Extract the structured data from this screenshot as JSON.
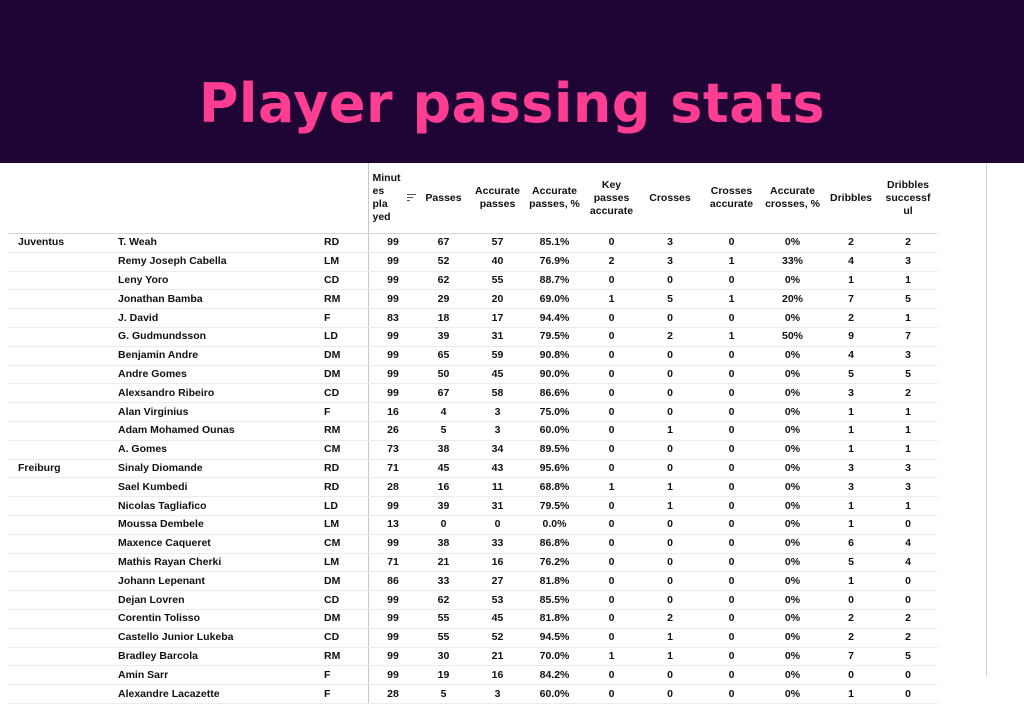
{
  "title": "Player passing stats",
  "chart_data": {
    "type": "table",
    "columns": [
      "",
      "",
      "",
      "Minut es pla yed",
      "Passes",
      "Accurate passes",
      "Accurate passes, %",
      "Key passes accurate",
      "Crosses",
      "Crosses accurate",
      "Accurate crosses, %",
      "Dribbles",
      "Dribbles successf ul"
    ],
    "rows": [
      [
        "Juventus",
        "T. Weah",
        "RD",
        "99",
        "67",
        "57",
        "85.1%",
        "0",
        "3",
        "0",
        "0%",
        "2",
        "2"
      ],
      [
        "",
        "Remy Joseph Cabella",
        "LM",
        "99",
        "52",
        "40",
        "76.9%",
        "2",
        "3",
        "1",
        "33%",
        "4",
        "3"
      ],
      [
        "",
        "Leny Yoro",
        "CD",
        "99",
        "62",
        "55",
        "88.7%",
        "0",
        "0",
        "0",
        "0%",
        "1",
        "1"
      ],
      [
        "",
        "Jonathan Bamba",
        "RM",
        "99",
        "29",
        "20",
        "69.0%",
        "1",
        "5",
        "1",
        "20%",
        "7",
        "5"
      ],
      [
        "",
        "J. David",
        "F",
        "83",
        "18",
        "17",
        "94.4%",
        "0",
        "0",
        "0",
        "0%",
        "2",
        "1"
      ],
      [
        "",
        "G. Gudmundsson",
        "LD",
        "99",
        "39",
        "31",
        "79.5%",
        "0",
        "2",
        "1",
        "50%",
        "9",
        "7"
      ],
      [
        "",
        "Benjamin Andre",
        "DM",
        "99",
        "65",
        "59",
        "90.8%",
        "0",
        "0",
        "0",
        "0%",
        "4",
        "3"
      ],
      [
        "",
        "Andre Gomes",
        "DM",
        "99",
        "50",
        "45",
        "90.0%",
        "0",
        "0",
        "0",
        "0%",
        "5",
        "5"
      ],
      [
        "",
        "Alexsandro Ribeiro",
        "CD",
        "99",
        "67",
        "58",
        "86.6%",
        "0",
        "0",
        "0",
        "0%",
        "3",
        "2"
      ],
      [
        "",
        "Alan Virginius",
        "F",
        "16",
        "4",
        "3",
        "75.0%",
        "0",
        "0",
        "0",
        "0%",
        "1",
        "1"
      ],
      [
        "",
        "Adam Mohamed Ounas",
        "RM",
        "26",
        "5",
        "3",
        "60.0%",
        "0",
        "1",
        "0",
        "0%",
        "1",
        "1"
      ],
      [
        "",
        "A. Gomes",
        "CM",
        "73",
        "38",
        "34",
        "89.5%",
        "0",
        "0",
        "0",
        "0%",
        "1",
        "1"
      ],
      [
        "Freiburg",
        "Sinaly Diomande",
        "RD",
        "71",
        "45",
        "43",
        "95.6%",
        "0",
        "0",
        "0",
        "0%",
        "3",
        "3"
      ],
      [
        "",
        "Sael Kumbedi",
        "RD",
        "28",
        "16",
        "11",
        "68.8%",
        "1",
        "1",
        "0",
        "0%",
        "3",
        "3"
      ],
      [
        "",
        "Nicolas Tagliafico",
        "LD",
        "99",
        "39",
        "31",
        "79.5%",
        "0",
        "1",
        "0",
        "0%",
        "1",
        "1"
      ],
      [
        "",
        "Moussa Dembele",
        "LM",
        "13",
        "0",
        "0",
        "0.0%",
        "0",
        "0",
        "0",
        "0%",
        "1",
        "0"
      ],
      [
        "",
        "Maxence Caqueret",
        "CM",
        "99",
        "38",
        "33",
        "86.8%",
        "0",
        "0",
        "0",
        "0%",
        "6",
        "4"
      ],
      [
        "",
        "Mathis Rayan Cherki",
        "LM",
        "71",
        "21",
        "16",
        "76.2%",
        "0",
        "0",
        "0",
        "0%",
        "5",
        "4"
      ],
      [
        "",
        "Johann Lepenant",
        "DM",
        "86",
        "33",
        "27",
        "81.8%",
        "0",
        "0",
        "0",
        "0%",
        "1",
        "0"
      ],
      [
        "",
        "Dejan Lovren",
        "CD",
        "99",
        "62",
        "53",
        "85.5%",
        "0",
        "0",
        "0",
        "0%",
        "0",
        "0"
      ],
      [
        "",
        "Corentin Tolisso",
        "DM",
        "99",
        "55",
        "45",
        "81.8%",
        "0",
        "2",
        "0",
        "0%",
        "2",
        "2"
      ],
      [
        "",
        "Castello Junior Lukeba",
        "CD",
        "99",
        "55",
        "52",
        "94.5%",
        "0",
        "1",
        "0",
        "0%",
        "2",
        "2"
      ],
      [
        "",
        "Bradley Barcola",
        "RM",
        "99",
        "30",
        "21",
        "70.0%",
        "1",
        "1",
        "0",
        "0%",
        "7",
        "5"
      ],
      [
        "",
        "Amin Sarr",
        "F",
        "99",
        "19",
        "16",
        "84.2%",
        "0",
        "0",
        "0",
        "0%",
        "0",
        "0"
      ],
      [
        "",
        "Alexandre Lacazette",
        "F",
        "28",
        "5",
        "3",
        "60.0%",
        "0",
        "0",
        "0",
        "0%",
        "1",
        "0"
      ]
    ]
  },
  "colors": {
    "banner_bg": "#1f0436",
    "title": "#ff3d92"
  },
  "icons": {
    "sort": "sort-lines-icon"
  }
}
